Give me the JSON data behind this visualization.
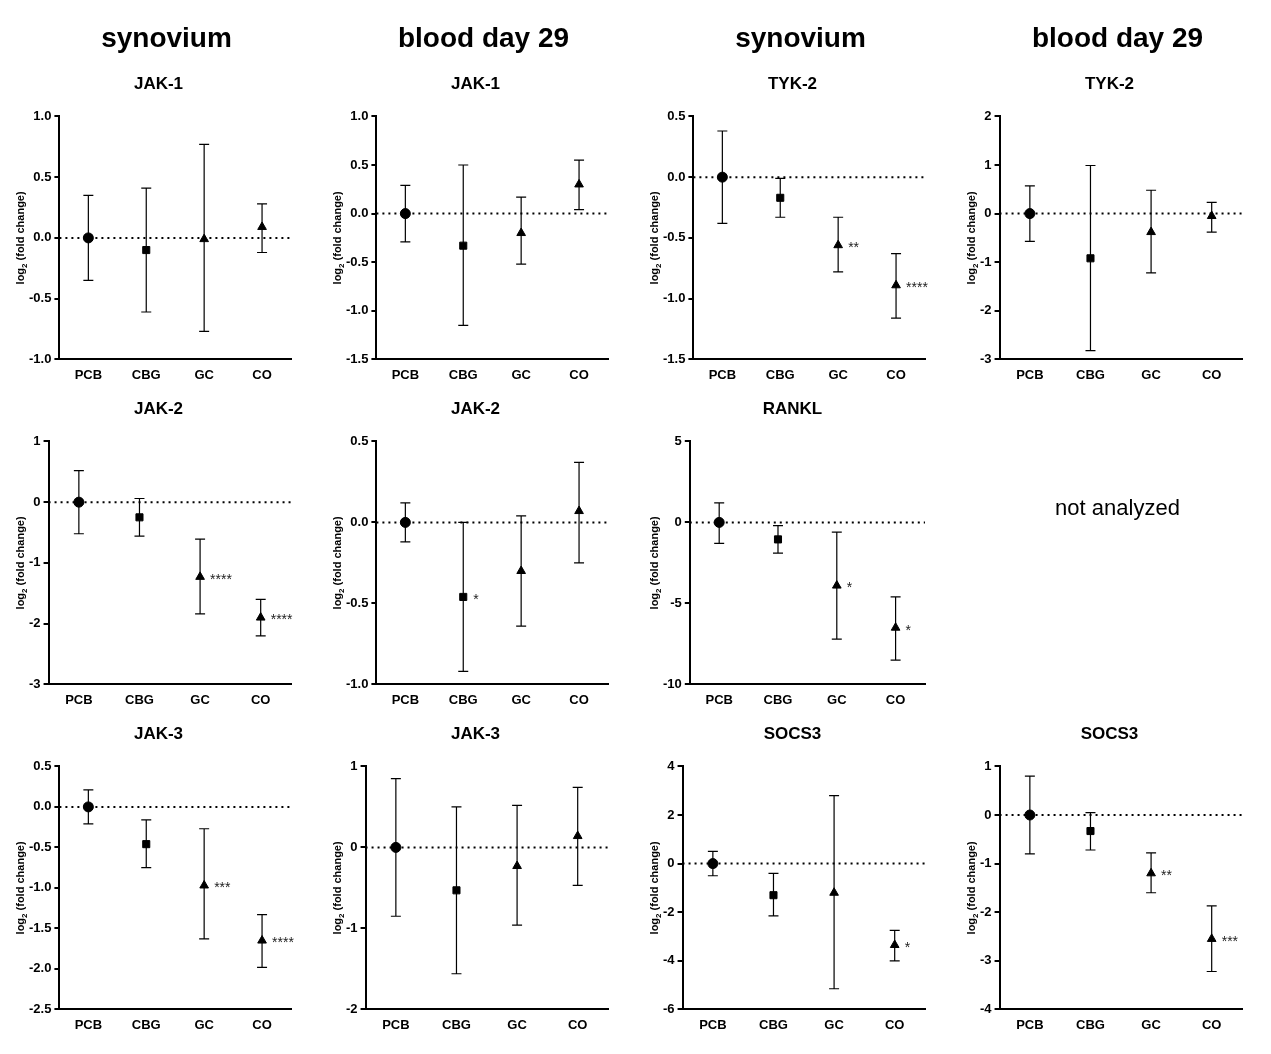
{
  "chart_data": [
    {
      "type": "scatter",
      "subtitle": "synovium",
      "title": "JAK-1",
      "ylabel": "log$_{2}$ (fold change)",
      "categories": [
        "PCB",
        "CBG",
        "GC",
        "CO"
      ],
      "color": "#000000",
      "ylim": [
        -1,
        1
      ],
      "yticks": [
        {
          "value": -1,
          "label": "-1.0"
        },
        -0.5,
        {
          "value": 0,
          "label": "0.0"
        },
        0.5,
        {
          "value": 1,
          "label": "1.0"
        }
      ],
      "grid": false,
      "legend": false,
      "ref_lines": [
        {
          "axis": "y",
          "value": 0,
          "line_style": "dotted"
        }
      ],
      "series": [
        {
          "x": [
            "PCB"
          ],
          "values": [
            0
          ],
          "errors": [
            [
              -0.35,
              0.35
            ]
          ],
          "marker": "circle"
        },
        {
          "x": [
            "CBG"
          ],
          "values": [
            -0.1
          ],
          "errors": [
            [
              -0.61,
              0.41
            ]
          ],
          "marker": "square"
        },
        {
          "x": [
            "GC"
          ],
          "values": [
            -0.01
          ],
          "errors": [
            [
              -0.77,
              0.77
            ]
          ],
          "marker": "triangle"
        },
        {
          "x": [
            "CO"
          ],
          "values": [
            0.09
          ],
          "errors": [
            [
              -0.12,
              0.28
            ]
          ],
          "marker": "triangle"
        }
      ]
    },
    {
      "type": "scatter",
      "subtitle": "blood day 29",
      "title": "JAK-1",
      "ylabel": "log$_{2}$ (fold change)",
      "categories": [
        "PCB",
        "CBG",
        "GC",
        "CO"
      ],
      "color": "#000000",
      "ylim": [
        -1.5,
        1
      ],
      "yticks": [
        -1.5,
        {
          "value": -1,
          "label": "-1.0"
        },
        -0.5,
        {
          "value": 0,
          "label": "0.0"
        },
        0.5,
        {
          "value": 1,
          "label": "1.0"
        }
      ],
      "grid": false,
      "legend": false,
      "ref_lines": [
        {
          "axis": "y",
          "value": 0,
          "line_style": "dotted"
        }
      ],
      "series": [
        {
          "x": [
            "PCB"
          ],
          "values": [
            0
          ],
          "errors": [
            [
              -0.29,
              0.29
            ]
          ],
          "marker": "circle"
        },
        {
          "x": [
            "CBG"
          ],
          "values": [
            -0.33
          ],
          "errors": [
            [
              -1.15,
              0.5
            ]
          ],
          "marker": "square"
        },
        {
          "x": [
            "GC"
          ],
          "values": [
            -0.2
          ],
          "errors": [
            [
              -0.52,
              0.17
            ]
          ],
          "marker": "triangle"
        },
        {
          "x": [
            "CO"
          ],
          "values": [
            0.3
          ],
          "errors": [
            [
              0.04,
              0.55
            ]
          ],
          "marker": "triangle"
        }
      ]
    },
    {
      "type": "scatter",
      "subtitle": "synovium",
      "title": "TYK-2",
      "ylabel": "log$_{2}$ (fold change)",
      "categories": [
        "PCB",
        "CBG",
        "GC",
        "CO"
      ],
      "color": "#000000",
      "ylim": [
        -1.5,
        0.5
      ],
      "yticks": [
        -1.5,
        {
          "value": -1,
          "label": "-1.0"
        },
        -0.5,
        {
          "value": 0,
          "label": "0.0"
        },
        0.5
      ],
      "grid": false,
      "legend": false,
      "ref_lines": [
        {
          "axis": "y",
          "value": 0,
          "line_style": "dotted"
        }
      ],
      "annotations": [
        {
          "text": "**",
          "x": "GC",
          "y": -0.56
        },
        {
          "text": "****",
          "x": "CO",
          "y": -0.89
        }
      ],
      "series": [
        {
          "x": [
            "PCB"
          ],
          "values": [
            0
          ],
          "errors": [
            [
              -0.38,
              0.38
            ]
          ],
          "marker": "circle"
        },
        {
          "x": [
            "CBG"
          ],
          "values": [
            -0.17
          ],
          "errors": [
            [
              -0.33,
              -0.01
            ]
          ],
          "marker": "square"
        },
        {
          "x": [
            "GC"
          ],
          "values": [
            -0.56
          ],
          "errors": [
            [
              -0.78,
              -0.33
            ]
          ],
          "marker": "triangle"
        },
        {
          "x": [
            "CO"
          ],
          "values": [
            -0.89
          ],
          "errors": [
            [
              -1.16,
              -0.63
            ]
          ],
          "marker": "triangle"
        }
      ]
    },
    {
      "type": "scatter",
      "subtitle": "blood day 29",
      "title": "TYK-2",
      "ylabel": "log$_{2}$ (fold change)",
      "categories": [
        "PCB",
        "CBG",
        "GC",
        "CO"
      ],
      "color": "#000000",
      "ylim": [
        -3,
        2
      ],
      "yticks": [
        -3,
        -2,
        -1,
        0,
        1,
        2
      ],
      "grid": false,
      "legend": false,
      "ref_lines": [
        {
          "axis": "y",
          "value": 0,
          "line_style": "dotted"
        }
      ],
      "series": [
        {
          "x": [
            "PCB"
          ],
          "values": [
            0
          ],
          "errors": [
            [
              -0.57,
              0.57
            ]
          ],
          "marker": "circle"
        },
        {
          "x": [
            "CBG"
          ],
          "values": [
            -0.92
          ],
          "errors": [
            [
              -2.82,
              0.99
            ]
          ],
          "marker": "square"
        },
        {
          "x": [
            "GC"
          ],
          "values": [
            -0.38
          ],
          "errors": [
            [
              -1.22,
              0.48
            ]
          ],
          "marker": "triangle"
        },
        {
          "x": [
            "CO"
          ],
          "values": [
            -0.05
          ],
          "errors": [
            [
              -0.38,
              0.23
            ]
          ],
          "marker": "triangle"
        }
      ]
    },
    {
      "type": "scatter",
      "title": "JAK-2",
      "ylabel": "log$_{2}$ (fold change)",
      "categories": [
        "PCB",
        "CBG",
        "GC",
        "CO"
      ],
      "color": "#000000",
      "ylim": [
        -3,
        1
      ],
      "yticks": [
        -3,
        -2,
        -1,
        0,
        1
      ],
      "grid": false,
      "legend": false,
      "ref_lines": [
        {
          "axis": "y",
          "value": 0,
          "line_style": "dotted"
        }
      ],
      "annotations": [
        {
          "text": "****",
          "x": "GC",
          "y": -1.23
        },
        {
          "text": "****",
          "x": "CO",
          "y": -1.9
        }
      ],
      "series": [
        {
          "x": [
            "PCB"
          ],
          "values": [
            0
          ],
          "errors": [
            [
              -0.52,
              0.52
            ]
          ],
          "marker": "circle"
        },
        {
          "x": [
            "CBG"
          ],
          "values": [
            -0.25
          ],
          "errors": [
            [
              -0.56,
              0.06
            ]
          ],
          "marker": "square"
        },
        {
          "x": [
            "GC"
          ],
          "values": [
            -1.23
          ],
          "errors": [
            [
              -1.84,
              -0.61
            ]
          ],
          "marker": "triangle"
        },
        {
          "x": [
            "CO"
          ],
          "values": [
            -1.9
          ],
          "errors": [
            [
              -2.2,
              -1.6
            ]
          ],
          "marker": "triangle"
        }
      ]
    },
    {
      "type": "scatter",
      "title": "JAK-2",
      "ylabel": "log$_{2}$ (fold change)",
      "categories": [
        "PCB",
        "CBG",
        "GC",
        "CO"
      ],
      "color": "#000000",
      "ylim": [
        -1,
        0.5
      ],
      "yticks": [
        {
          "value": -1,
          "label": "-1.0"
        },
        -0.5,
        {
          "value": 0,
          "label": "0.0"
        },
        0.5
      ],
      "grid": false,
      "legend": false,
      "ref_lines": [
        {
          "axis": "y",
          "value": 0,
          "line_style": "dotted"
        }
      ],
      "annotations": [
        {
          "text": "*",
          "x": "CBG",
          "y": -0.46
        }
      ],
      "series": [
        {
          "x": [
            "PCB"
          ],
          "values": [
            0
          ],
          "errors": [
            [
              -0.12,
              0.12
            ]
          ],
          "marker": "circle"
        },
        {
          "x": [
            "CBG"
          ],
          "values": [
            -0.46
          ],
          "errors": [
            [
              -0.92,
              0
            ]
          ],
          "marker": "square"
        },
        {
          "x": [
            "GC"
          ],
          "values": [
            -0.3
          ],
          "errors": [
            [
              -0.64,
              0.04
            ]
          ],
          "marker": "triangle"
        },
        {
          "x": [
            "CO"
          ],
          "values": [
            0.07
          ],
          "errors": [
            [
              -0.25,
              0.37
            ]
          ],
          "marker": "triangle"
        }
      ]
    },
    {
      "type": "scatter",
      "title": "RANKL",
      "ylabel": "log$_{2}$ (fold change)",
      "categories": [
        "PCB",
        "CBG",
        "GC",
        "CO"
      ],
      "color": "#000000",
      "ylim": [
        -10,
        5
      ],
      "yticks": [
        -10,
        -5,
        0,
        5
      ],
      "grid": false,
      "legend": false,
      "ref_lines": [
        {
          "axis": "y",
          "value": 0,
          "line_style": "dotted"
        }
      ],
      "annotations": [
        {
          "text": "*",
          "x": "GC",
          "y": -3.9
        },
        {
          "text": "*",
          "x": "CO",
          "y": -6.5
        }
      ],
      "series": [
        {
          "x": [
            "PCB"
          ],
          "values": [
            0
          ],
          "errors": [
            [
              -1.3,
              1.2
            ]
          ],
          "marker": "circle"
        },
        {
          "x": [
            "CBG"
          ],
          "values": [
            -1.05
          ],
          "errors": [
            [
              -1.9,
              -0.2
            ]
          ],
          "marker": "square"
        },
        {
          "x": [
            "GC"
          ],
          "values": [
            -3.9
          ],
          "errors": [
            [
              -7.2,
              -0.6
            ]
          ],
          "marker": "triangle"
        },
        {
          "x": [
            "CO"
          ],
          "values": [
            -6.5
          ],
          "errors": [
            [
              -8.5,
              -4.6
            ]
          ],
          "marker": "triangle"
        }
      ]
    },
    {
      "type": "other",
      "annotations": [
        "not analyzed"
      ]
    },
    {
      "type": "scatter",
      "title": "JAK-3",
      "ylabel": "log$_{2}$ (fold change)",
      "categories": [
        "PCB",
        "CBG",
        "GC",
        "CO"
      ],
      "color": "#000000",
      "ylim": [
        -2.5,
        0.5
      ],
      "yticks": [
        -2.5,
        {
          "value": -2,
          "label": "-2.0"
        },
        -1.5,
        {
          "value": -1,
          "label": "-1.0"
        },
        -0.5,
        {
          "value": 0,
          "label": "0.0"
        },
        0.5
      ],
      "grid": false,
      "legend": false,
      "ref_lines": [
        {
          "axis": "y",
          "value": 0,
          "line_style": "dotted"
        }
      ],
      "annotations": [
        {
          "text": "***",
          "x": "GC",
          "y": -0.97
        },
        {
          "text": "****",
          "x": "CO",
          "y": -1.65
        }
      ],
      "series": [
        {
          "x": [
            "PCB"
          ],
          "values": [
            0
          ],
          "errors": [
            [
              -0.21,
              0.21
            ]
          ],
          "marker": "circle"
        },
        {
          "x": [
            "CBG"
          ],
          "values": [
            -0.46
          ],
          "errors": [
            [
              -0.75,
              -0.16
            ]
          ],
          "marker": "square"
        },
        {
          "x": [
            "GC"
          ],
          "values": [
            -0.97
          ],
          "errors": [
            [
              -1.63,
              -0.27
            ]
          ],
          "marker": "triangle"
        },
        {
          "x": [
            "CO"
          ],
          "values": [
            -1.65
          ],
          "errors": [
            [
              -1.98,
              -1.33
            ]
          ],
          "marker": "triangle"
        }
      ]
    },
    {
      "type": "scatter",
      "title": "JAK-3",
      "ylabel": "log$_{2}$ (fold change)",
      "categories": [
        "PCB",
        "CBG",
        "GC",
        "CO"
      ],
      "color": "#000000",
      "ylim": [
        -2,
        1
      ],
      "yticks": [
        -2,
        -1,
        0,
        1
      ],
      "grid": false,
      "legend": false,
      "ref_lines": [
        {
          "axis": "y",
          "value": 0,
          "line_style": "dotted"
        }
      ],
      "series": [
        {
          "x": [
            "PCB"
          ],
          "values": [
            0
          ],
          "errors": [
            [
              -0.85,
              0.85
            ]
          ],
          "marker": "circle"
        },
        {
          "x": [
            "CBG"
          ],
          "values": [
            -0.53
          ],
          "errors": [
            [
              -1.56,
              0.5
            ]
          ],
          "marker": "square"
        },
        {
          "x": [
            "GC"
          ],
          "values": [
            -0.23
          ],
          "errors": [
            [
              -0.96,
              0.52
            ]
          ],
          "marker": "triangle"
        },
        {
          "x": [
            "CO"
          ],
          "values": [
            0.14
          ],
          "errors": [
            [
              -0.47,
              0.74
            ]
          ],
          "marker": "triangle"
        }
      ]
    },
    {
      "type": "scatter",
      "title": "SOCS3",
      "ylabel": "log$_{2}$ (fold change)",
      "categories": [
        "PCB",
        "CBG",
        "GC",
        "CO"
      ],
      "color": "#000000",
      "ylim": [
        -6,
        4
      ],
      "yticks": [
        -6,
        -4,
        -2,
        0,
        2,
        4
      ],
      "grid": false,
      "legend": false,
      "ref_lines": [
        {
          "axis": "y",
          "value": 0,
          "line_style": "dotted"
        }
      ],
      "annotations": [
        {
          "text": "*",
          "x": "CO",
          "y": -3.35
        }
      ],
      "series": [
        {
          "x": [
            "PCB"
          ],
          "values": [
            0
          ],
          "errors": [
            [
              -0.5,
              0.5
            ]
          ],
          "marker": "circle"
        },
        {
          "x": [
            "CBG"
          ],
          "values": [
            -1.3
          ],
          "errors": [
            [
              -2.15,
              -0.4
            ]
          ],
          "marker": "square"
        },
        {
          "x": [
            "GC"
          ],
          "values": [
            -1.2
          ],
          "errors": [
            [
              -5.15,
              2.8
            ]
          ],
          "marker": "triangle"
        },
        {
          "x": [
            "CO"
          ],
          "values": [
            -3.35
          ],
          "errors": [
            [
              -4,
              -2.75
            ]
          ],
          "marker": "triangle"
        }
      ]
    },
    {
      "type": "scatter",
      "title": "SOCS3",
      "ylabel": "log$_{2}$ (fold change)",
      "categories": [
        "PCB",
        "CBG",
        "GC",
        "CO"
      ],
      "color": "#000000",
      "ylim": [
        -4,
        1
      ],
      "yticks": [
        -4,
        -3,
        -2,
        -1,
        0,
        1
      ],
      "grid": false,
      "legend": false,
      "ref_lines": [
        {
          "axis": "y",
          "value": 0,
          "line_style": "dotted"
        }
      ],
      "annotations": [
        {
          "text": "**",
          "x": "GC",
          "y": -1.2
        },
        {
          "text": "***",
          "x": "CO",
          "y": -2.55
        }
      ],
      "series": [
        {
          "x": [
            "PCB"
          ],
          "values": [
            0
          ],
          "errors": [
            [
              -0.8,
              0.8
            ]
          ],
          "marker": "circle"
        },
        {
          "x": [
            "CBG"
          ],
          "values": [
            -0.33
          ],
          "errors": [
            [
              -0.72,
              0.05
            ]
          ],
          "marker": "square"
        },
        {
          "x": [
            "GC"
          ],
          "values": [
            -1.2
          ],
          "errors": [
            [
              -1.6,
              -0.78
            ]
          ],
          "marker": "triangle"
        },
        {
          "x": [
            "CO"
          ],
          "values": [
            -2.55
          ],
          "errors": [
            [
              -3.22,
              -1.87
            ]
          ],
          "marker": "triangle"
        }
      ]
    }
  ]
}
